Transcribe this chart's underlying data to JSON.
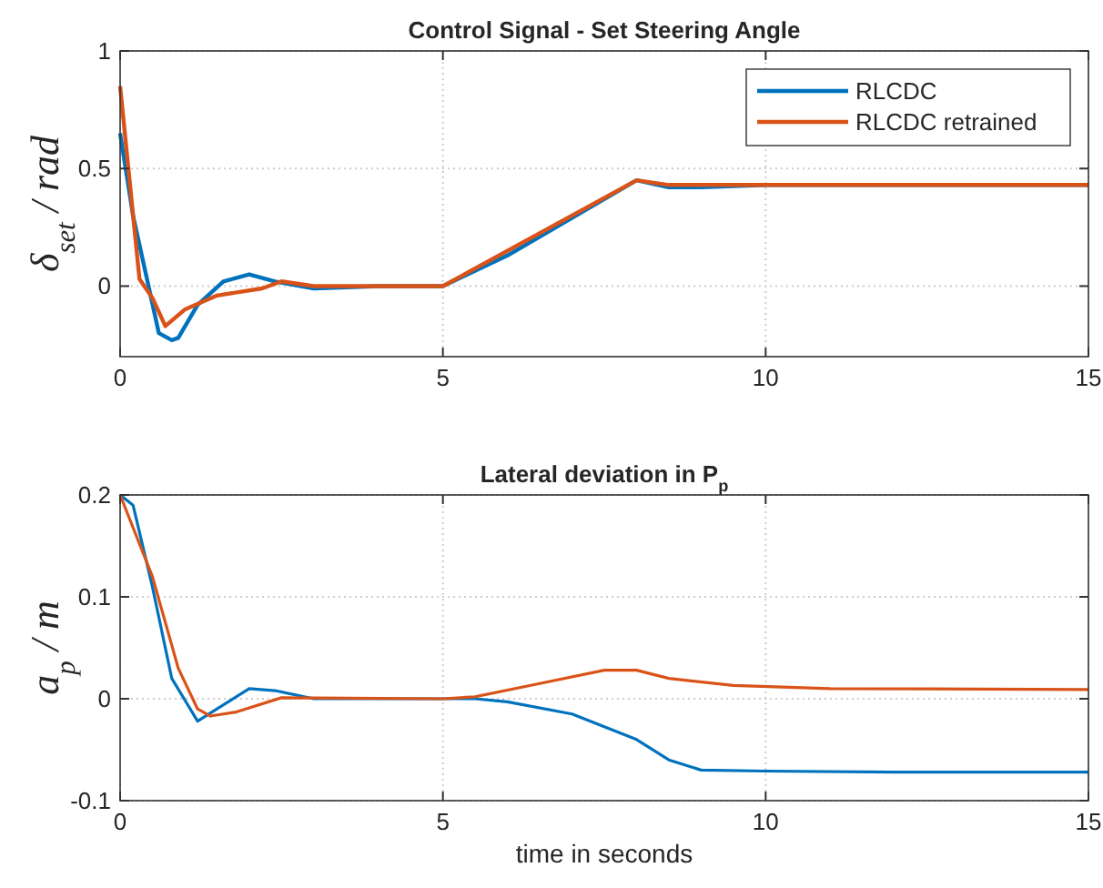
{
  "chart_data": [
    {
      "type": "line",
      "title": "Control Signal - Set Steering Angle",
      "ylabel": "δ$_{set}$ / rad",
      "xlim": [
        0,
        15
      ],
      "ylim": [
        -0.3,
        1
      ],
      "xticks": [
        0,
        5,
        10,
        15
      ],
      "yticks": [
        0,
        0.5,
        1
      ],
      "grid": true,
      "legend": "top right",
      "line_style": "solid",
      "series": [
        {
          "name": "RLCDC",
          "color": "#0072bd",
          "x": [
            0,
            0.2,
            0.4,
            0.6,
            0.8,
            0.9,
            1.2,
            1.6,
            2,
            2.4,
            3,
            4,
            5,
            6,
            8,
            8.5,
            9,
            10,
            15
          ],
          "values": [
            0.65,
            0.3,
            0.05,
            -0.2,
            -0.23,
            -0.22,
            -0.08,
            0.02,
            0.05,
            0.02,
            -0.01,
            0,
            0,
            0.13,
            0.45,
            0.42,
            0.42,
            0.43,
            0.43
          ]
        },
        {
          "name": "RLCDC retrained",
          "color": "#d95319",
          "x": [
            0,
            0.3,
            0.5,
            0.7,
            1,
            1.5,
            2.2,
            2.5,
            3,
            5,
            8,
            8.5,
            10,
            15
          ],
          "values": [
            0.85,
            0.03,
            -0.05,
            -0.17,
            -0.1,
            -0.04,
            -0.01,
            0.02,
            0,
            0,
            0.45,
            0.43,
            0.43,
            0.43
          ]
        }
      ]
    },
    {
      "type": "line",
      "title": "Lateral deviation in P$_{p}$",
      "xlabel": "time in seconds",
      "ylabel": "a$_{p}$ / m",
      "xlim": [
        0,
        15
      ],
      "ylim": [
        -0.1,
        0.2
      ],
      "xticks": [
        0,
        5,
        10,
        15
      ],
      "yticks": [
        -0.1,
        0,
        0.1,
        0.2
      ],
      "grid": true,
      "line_style": "solid",
      "series": [
        {
          "color": "#0072bd",
          "x": [
            0,
            0.2,
            0.5,
            0.8,
            1.2,
            1.5,
            2,
            2.4,
            3,
            5,
            5.5,
            6,
            7,
            8,
            8.5,
            9,
            10,
            12,
            15
          ],
          "values": [
            0.2,
            0.19,
            0.11,
            0.02,
            -0.022,
            -0.01,
            0.01,
            0.008,
            0,
            0,
            0,
            -0.003,
            -0.015,
            -0.04,
            -0.06,
            -0.07,
            -0.071,
            -0.072,
            -0.072
          ]
        },
        {
          "color": "#d95319",
          "x": [
            0,
            0.5,
            0.9,
            1.2,
            1.4,
            1.8,
            2.5,
            5,
            5.5,
            6.5,
            7.5,
            8,
            8.5,
            9.5,
            11,
            15
          ],
          "values": [
            0.2,
            0.12,
            0.03,
            -0.01,
            -0.017,
            -0.013,
            0.001,
            0,
            0.002,
            0.015,
            0.028,
            0.028,
            0.02,
            0.013,
            0.01,
            0.009
          ]
        }
      ]
    }
  ]
}
